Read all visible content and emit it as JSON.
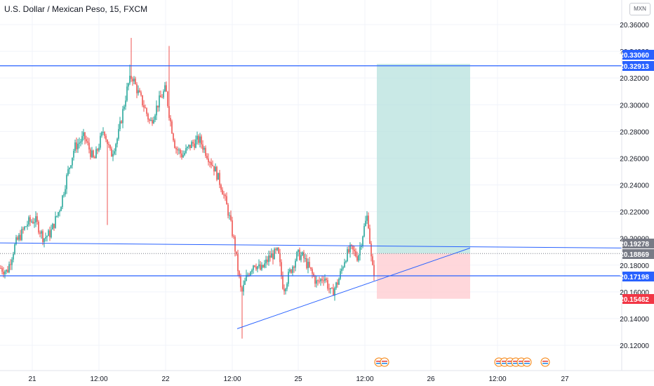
{
  "header": {
    "symbol_title": "U.S. Dollar / Mexican Peso, 15, FXCM",
    "currency_button": "MXN"
  },
  "colors": {
    "up": "#26a69a",
    "down": "#ef5350",
    "line": "#2962ff",
    "profit_zone": "#b2dfdb",
    "loss_zone": "#ffcdd2",
    "grid": "#f0f3fa"
  },
  "chart_data": {
    "type": "candlestick",
    "y_axis": {
      "ylim": [
        20.105,
        20.372
      ],
      "tick_labels": [
        "20.36000",
        "20.34000",
        "20.32000",
        "20.30000",
        "20.28000",
        "20.26000",
        "20.24000",
        "20.22000",
        "20.20000",
        "20.18000",
        "20.16000",
        "20.14000",
        "20.12000"
      ],
      "tick_values": [
        20.36,
        20.34,
        20.32,
        20.3,
        20.28,
        20.26,
        20.24,
        20.22,
        20.2,
        20.18,
        20.16,
        20.14,
        20.12
      ]
    },
    "x_axis": {
      "tick_labels": [
        "21",
        "12:00",
        "22",
        "12:00",
        "25",
        "12:00",
        "26",
        "12:00",
        "27"
      ]
    },
    "price_labels": [
      {
        "value": "20.33060",
        "price": 20.3306,
        "color": "#2962ff"
      },
      {
        "value": "20.32913",
        "price": 20.32913,
        "color": "#2962ff"
      },
      {
        "value": "20.19278",
        "price": 20.19278,
        "color": "#787b86"
      },
      {
        "value": "20.18869",
        "price": 20.18869,
        "color": "#787b86"
      },
      {
        "value": "20.17198",
        "price": 20.17198,
        "color": "#2962ff"
      },
      {
        "value": "20.15482",
        "price": 20.15482,
        "color": "#f23645"
      }
    ],
    "lines": [
      {
        "name": "resistance",
        "price_start": 20.32913,
        "price_end": 20.32913
      },
      {
        "name": "support",
        "price_start": 20.17198,
        "price_end": 20.17198
      },
      {
        "name": "upper-trend",
        "price_start": 20.1966,
        "price_end": 20.1928
      },
      {
        "name": "rising-trend",
        "price_start": 20.1324,
        "price_end": 20.1928
      }
    ],
    "dotted_price_line": 20.18869,
    "position": {
      "entry": 20.18869,
      "target": 20.3306,
      "stop": 20.15482
    },
    "ohlc": []
  }
}
